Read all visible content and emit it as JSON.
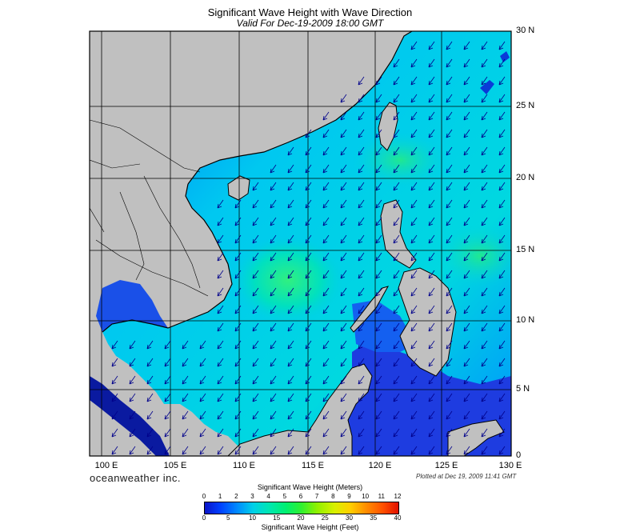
{
  "title": "Significant Wave Height with Wave Direction",
  "subtitle": "Valid For Dec-19-2009 18:00 GMT",
  "map": {
    "lat_labels": [
      "30 N",
      "25 N",
      "20 N",
      "15 N",
      "10 N",
      "5 N",
      "0"
    ],
    "lon_labels": [
      "100 E",
      "105 E",
      "110 E",
      "115 E",
      "120 E",
      "125 E",
      "130 E"
    ],
    "lat_range": [
      0,
      30
    ],
    "lon_range": [
      100,
      130
    ],
    "land_color": "#c0c0c0",
    "deep_blue": "#0a1aa0"
  },
  "brand": "oceanweather inc.",
  "plotted": "Plotted at Dec 19, 2009 11:41 GMT",
  "colorbar": {
    "title_meters": "Significant Wave Height (Meters)",
    "title_feet": "Significant Wave Height (Feet)",
    "meters_ticks": [
      "0",
      "1",
      "2",
      "3",
      "4",
      "5",
      "6",
      "7",
      "8",
      "9",
      "10",
      "11",
      "12"
    ],
    "feet_ticks": [
      "0",
      "5",
      "10",
      "15",
      "20",
      "25",
      "30",
      "35",
      "40"
    ]
  }
}
